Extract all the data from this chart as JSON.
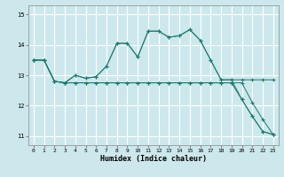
{
  "xlabel": "Humidex (Indice chaleur)",
  "bg_color": "#cce8ec",
  "grid_color": "#ffffff",
  "line_color": "#1a7a6e",
  "xlim": [
    -0.5,
    23.5
  ],
  "ylim": [
    10.7,
    15.3
  ],
  "yticks": [
    11,
    12,
    13,
    14,
    15
  ],
  "xticks": [
    0,
    1,
    2,
    3,
    4,
    5,
    6,
    7,
    8,
    9,
    10,
    11,
    12,
    13,
    14,
    15,
    16,
    17,
    18,
    19,
    20,
    21,
    22,
    23
  ],
  "line1_x": [
    0,
    1,
    2,
    3,
    4,
    5,
    6,
    7,
    8,
    9,
    10,
    11,
    12,
    13,
    14,
    15,
    16,
    17,
    18,
    19,
    20,
    21,
    22,
    23
  ],
  "line1_y": [
    13.5,
    13.5,
    12.8,
    12.75,
    13.0,
    12.9,
    12.95,
    13.3,
    14.05,
    14.05,
    13.6,
    14.45,
    14.45,
    14.25,
    14.3,
    14.5,
    14.15,
    13.5,
    12.85,
    12.85,
    12.85,
    12.85,
    12.85,
    12.85
  ],
  "line2_x": [
    0,
    1,
    2,
    3,
    4,
    5,
    6,
    7,
    8,
    9,
    10,
    11,
    12,
    13,
    14,
    15,
    16,
    17,
    18,
    19,
    20,
    21,
    22,
    23
  ],
  "line2_y": [
    13.5,
    13.5,
    12.8,
    12.75,
    13.0,
    12.9,
    12.95,
    13.3,
    14.05,
    14.05,
    13.6,
    14.45,
    14.45,
    14.25,
    14.3,
    14.5,
    14.15,
    13.5,
    12.85,
    12.85,
    12.2,
    11.65,
    11.15,
    11.05
  ],
  "line3_x": [
    0,
    1,
    2,
    3,
    4,
    5,
    6,
    7,
    8,
    9,
    10,
    11,
    12,
    13,
    14,
    15,
    16,
    17,
    18,
    19,
    20,
    21,
    22,
    23
  ],
  "line3_y": [
    13.5,
    13.5,
    12.8,
    12.75,
    12.75,
    12.75,
    12.75,
    12.75,
    12.75,
    12.75,
    12.75,
    12.75,
    12.75,
    12.75,
    12.75,
    12.75,
    12.75,
    12.75,
    12.75,
    12.75,
    12.2,
    11.65,
    11.15,
    11.05
  ],
  "line4_x": [
    0,
    1,
    2,
    3,
    4,
    5,
    6,
    7,
    8,
    9,
    10,
    11,
    12,
    13,
    14,
    15,
    16,
    17,
    18,
    19,
    20,
    21,
    22,
    23
  ],
  "line4_y": [
    13.5,
    13.5,
    12.8,
    12.75,
    12.75,
    12.75,
    12.75,
    12.75,
    12.75,
    12.75,
    12.75,
    12.75,
    12.75,
    12.75,
    12.75,
    12.75,
    12.75,
    12.75,
    12.75,
    12.75,
    12.75,
    12.1,
    11.55,
    11.05
  ]
}
